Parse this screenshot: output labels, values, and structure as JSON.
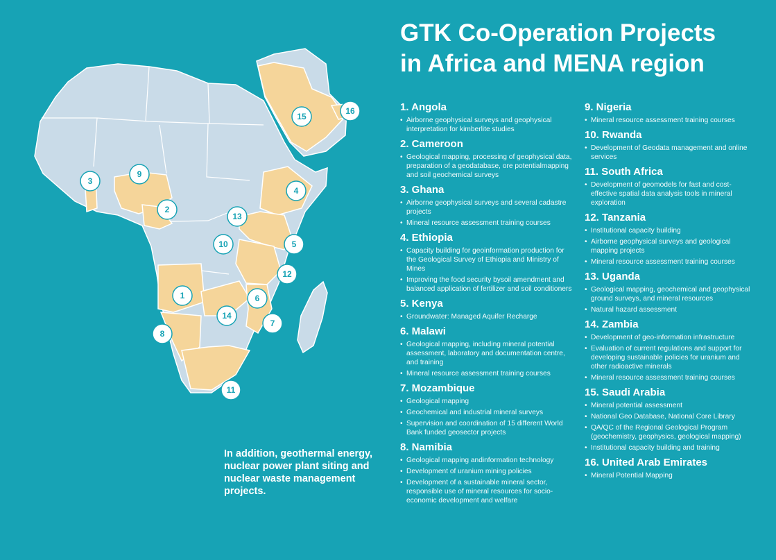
{
  "title_line1": "GTK Co-Operation Projects",
  "title_line2": "in Africa and MENA region",
  "note": "In addition, geothermal energy, nuclear power plant siting and nuclear waste management projects.",
  "colors": {
    "background": "#17a3b5",
    "land": "#c9dbe8",
    "project_country": "#f5d59a",
    "border": "#ffffff"
  },
  "markers": [
    "1",
    "2",
    "3",
    "4",
    "5",
    "6",
    "7",
    "8",
    "9",
    "10",
    "11",
    "12",
    "13",
    "14",
    "15",
    "16"
  ],
  "projects": [
    {
      "name": "1. Angola",
      "items": [
        "Airborne geophysical surveys and geophysical interpretation for kimberlite studies"
      ]
    },
    {
      "name": "2. Cameroon",
      "items": [
        "Geological mapping, processing of geophysical data, preparation of a geodatabase, ore potentialmapping and soil geochemical surveys"
      ]
    },
    {
      "name": "3. Ghana",
      "items": [
        "Airborne geophysical surveys and several cadastre projects",
        "Mineral resource assessment training courses"
      ]
    },
    {
      "name": "4. Ethiopia",
      "items": [
        "Capacity building for geoinformation production for the Geological Survey of Ethiopia and Ministry of Mines",
        "Improving the food security bysoil amendment and balanced application of fertilizer and soil conditioners"
      ]
    },
    {
      "name": "5. Kenya",
      "items": [
        "Groundwater: Managed Aquifer Recharge"
      ]
    },
    {
      "name": "6. Malawi",
      "items": [
        "Geological mapping, including mineral potential assessment, laboratory and documentation centre, and training",
        "Mineral resource assessment training courses"
      ]
    },
    {
      "name": "7. Mozambique",
      "items": [
        "Geological mapping",
        "Geochemical and industrial mineral surveys",
        "Supervision and coordination of 15 different World Bank funded geosector projects"
      ]
    },
    {
      "name": "8. Namibia",
      "items": [
        "Geological mapping andinformation technology",
        "Development of uranium mining policies",
        "Development of a sustainable mineral sector, responsible use of mineral resources for socio-economic development and welfare"
      ]
    },
    {
      "name": "9. Nigeria",
      "items": [
        "Mineral resource assessment training courses"
      ]
    },
    {
      "name": "10. Rwanda",
      "items": [
        "Development of Geodata management and online services"
      ]
    },
    {
      "name": "11. South Africa",
      "items": [
        "Development of geomodels for fast and cost-effective spatial data analysis tools in mineral exploration"
      ]
    },
    {
      "name": "12. Tanzania",
      "items": [
        "Institutional capacity building",
        "Airborne geophysical surveys and geological mapping projects",
        "Mineral resource assessment training courses"
      ]
    },
    {
      "name": "13. Uganda",
      "items": [
        "Geological mapping, geochemical and geophysical ground surveys, and mineral resources",
        "Natural hazard assessment"
      ]
    },
    {
      "name": "14. Zambia",
      "items": [
        "Development of geo-information infrastructure",
        "Evaluation of current regulations and support for developing sustainable policies for uranium and other radioactive minerals",
        "Mineral resource assessment training courses"
      ]
    },
    {
      "name": "15. Saudi Arabia",
      "items": [
        "Mineral potential assessment",
        "National Geo Database, National Core Library",
        "QA/QC of the Regional Geological Program (geochemistry, geophysics, geological mapping)",
        "Institutional capacity building and training"
      ]
    },
    {
      "name": "16. United Arab Emirates",
      "items": [
        "Mineral Potential Mapping"
      ]
    }
  ]
}
